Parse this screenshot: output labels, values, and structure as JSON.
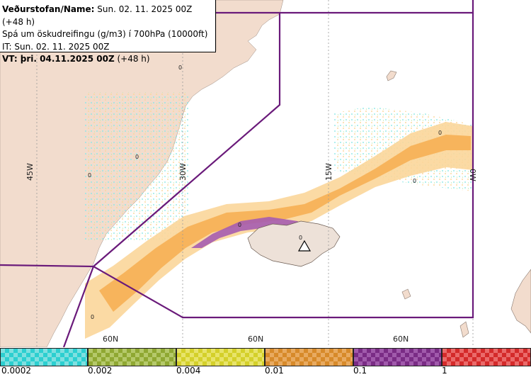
{
  "header": {
    "line1_bold": "Veðurstofan/Name:",
    "line1_rest": " Sun. 02. 11. 2025 00Z (+48 h)",
    "line2": "Spá um öskudreifingu (g/m3) í 700hPa (10000ft)",
    "line3": "IT: Sun. 02. 11. 2025 00Z",
    "line4_bold": "VT: þri. 04.11.2025 00Z",
    "line4_rest": " (+48 h)"
  },
  "map": {
    "meridian_labels": [
      "45W",
      "30W",
      "15W",
      "0W"
    ],
    "parallel_labels": [
      "60N",
      "60N",
      "60N"
    ],
    "zero_markers": [
      "0",
      "0",
      "0",
      "0",
      "0",
      "0",
      "0",
      "0"
    ],
    "colors": {
      "land": "#f2dccd",
      "sea": "#ffffff",
      "boundary": "#6a1a7a",
      "grid": "#9a9a9a",
      "ash_very_low": "#8ee8e8",
      "ash_low": "#fbd69a",
      "ash_mid": "#f7b45c",
      "ash_high": "#a55cb0",
      "ash_peak": "#c83a3a"
    },
    "volcano_icon": "volcano-triangle-icon"
  },
  "legend": {
    "labels": [
      "0.0002",
      "0.002",
      "0.004",
      "0.01",
      "0.1",
      "1"
    ],
    "colors": [
      "#2ccfd0",
      "#8fa832",
      "#d4d02a",
      "#d78a2a",
      "#7a2c85",
      "#d42a2a"
    ],
    "colors_alt": [
      "#7fe0e0",
      "#b5c96a",
      "#e8e46a",
      "#e8aa60",
      "#a05aab",
      "#ea6a6a"
    ]
  }
}
